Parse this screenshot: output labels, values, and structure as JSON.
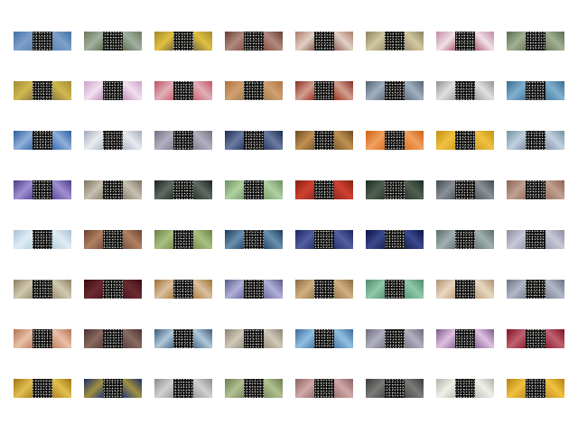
{
  "cells": [
    {
      "a": "#3f6fa8",
      "b": "#7fa0c8",
      "c": "#5a86b8"
    },
    {
      "a": "#6a7a5a",
      "b": "#a2b0a0",
      "c": "#5e7050"
    },
    {
      "a": "#a08a30",
      "b": "#e0c040",
      "c": "#7a6a40"
    },
    {
      "a": "#6a3a30",
      "b": "#b08a80",
      "c": "#8a5040"
    },
    {
      "a": "#b07a60",
      "b": "#e0d0c8",
      "c": "#8a6050"
    },
    {
      "a": "#8a8060",
      "b": "#d0c8a0",
      "c": "#a09070"
    },
    {
      "a": "#c08aa0",
      "b": "#f0e0e8",
      "c": "#b06070"
    },
    {
      "a": "#5a6a50",
      "b": "#a0b090",
      "c": "#707a60"
    },
    {
      "a": "#a08a30",
      "b": "#d0b850",
      "c": "#8a7a40"
    },
    {
      "a": "#d0a0c8",
      "b": "#f0e0f0",
      "c": "#c090b8"
    },
    {
      "a": "#c05060",
      "b": "#e0b0b8",
      "c": "#d06070"
    },
    {
      "a": "#b07040",
      "b": "#d0a070",
      "c": "#a08050"
    },
    {
      "a": "#8a2a20",
      "b": "#d0a090",
      "c": "#a03020"
    },
    {
      "a": "#506070",
      "b": "#a0b0c0",
      "c": "#607080"
    },
    {
      "a": "#909090",
      "b": "#e0e0e0",
      "c": "#a0a0a0"
    },
    {
      "a": "#3a6a8a",
      "b": "#80b0d0",
      "c": "#4a7a9a"
    },
    {
      "a": "#2a5aa0",
      "b": "#90b0d8",
      "c": "#3a6ab0"
    },
    {
      "a": "#a0a8b8",
      "b": "#e8ecf0",
      "c": "#b0b8c8"
    },
    {
      "a": "#707080",
      "b": "#b0b0c0",
      "c": "#808090"
    },
    {
      "a": "#1a2a50",
      "b": "#6a7aa0",
      "c": "#2a3a60"
    },
    {
      "a": "#6a4a20",
      "b": "#c09050",
      "c": "#7a5a30"
    },
    {
      "a": "#d06010",
      "b": "#f0a060",
      "c": "#e07020"
    },
    {
      "a": "#c09010",
      "b": "#f0c040",
      "c": "#d0a020"
    },
    {
      "a": "#7090a0",
      "b": "#c0d0e0",
      "c": "#8090a0"
    },
    {
      "a": "#4a3a8a",
      "b": "#a090d0",
      "c": "#5a4a9a"
    },
    {
      "a": "#7a7060",
      "b": "#c8c0b0",
      "c": "#8a8070"
    },
    {
      "a": "#1a2020",
      "b": "#606a60",
      "c": "#2a3030"
    },
    {
      "a": "#6a9060",
      "b": "#b0d0a0",
      "c": "#7aa070"
    },
    {
      "a": "#802010",
      "b": "#d04030",
      "c": "#902a20"
    },
    {
      "a": "#1a2a20",
      "b": "#506050",
      "c": "#2a3a30"
    },
    {
      "a": "#404850",
      "b": "#8a9098",
      "c": "#505860"
    },
    {
      "a": "#8a6050",
      "b": "#c0a090",
      "c": "#9a7060"
    },
    {
      "a": "#a8c0d8",
      "b": "#e0ecf4",
      "c": "#b8d0e0"
    },
    {
      "a": "#6a4030",
      "b": "#b08060",
      "c": "#7a5040"
    },
    {
      "a": "#6a8040",
      "b": "#a8c080",
      "c": "#7a9050"
    },
    {
      "a": "#1a3a5a",
      "b": "#6a90b0",
      "c": "#2a4a6a"
    },
    {
      "a": "#1a2060",
      "b": "#5060a0",
      "c": "#2a3070"
    },
    {
      "a": "#0a1040",
      "b": "#3a4a90",
      "c": "#1a2050"
    },
    {
      "a": "#5a6a6a",
      "b": "#a0b0b0",
      "c": "#6a7a7a"
    },
    {
      "a": "#8a8aa0",
      "b": "#c8c8d8",
      "c": "#9a9ab0"
    },
    {
      "a": "#8a8060",
      "b": "#d0c8b0",
      "c": "#9a9070"
    },
    {
      "a": "#3a0a10",
      "b": "#6a2a30",
      "c": "#4a1a20"
    },
    {
      "a": "#a07030",
      "b": "#d8c0a0",
      "c": "#b08040"
    },
    {
      "a": "#5a5a8a",
      "b": "#b0b0d8",
      "c": "#6a6a9a"
    },
    {
      "a": "#8a6a40",
      "b": "#d0b080",
      "c": "#9a7a50"
    },
    {
      "a": "#4a8a6a",
      "b": "#90c8a8",
      "c": "#5a9a7a"
    },
    {
      "a": "#b09070",
      "b": "#e8d8c0",
      "c": "#c0a080"
    },
    {
      "a": "#6a7080",
      "b": "#b0b8c8",
      "c": "#7a8090"
    },
    {
      "a": "#b07050",
      "b": "#e8c0a8",
      "c": "#c08060"
    },
    {
      "a": "#4a3030",
      "b": "#8a6a60",
      "c": "#5a4040"
    },
    {
      "a": "#3a5a7a",
      "b": "#b0c8d8",
      "c": "#4a6a8a"
    },
    {
      "a": "#8a8070",
      "b": "#d0c8b8",
      "c": "#9a9080"
    },
    {
      "a": "#3a6a9a",
      "b": "#90c0e0",
      "c": "#4a7aaa"
    },
    {
      "a": "#6a6a7a",
      "b": "#b0b0c0",
      "c": "#7a7a8a"
    },
    {
      "a": "#7a5a8a",
      "b": "#e0c0e0",
      "c": "#8a6a9a"
    },
    {
      "a": "#7a1020",
      "b": "#c06070",
      "c": "#8a2030"
    },
    {
      "a": "#a07010",
      "b": "#e0c050",
      "c": "#b08020"
    },
    {
      "a": "#1a2a6a",
      "b": "#a09040",
      "c": "#2a3a7a"
    },
    {
      "a": "#8a8a8a",
      "b": "#d0d0d0",
      "c": "#9a9a9a"
    },
    {
      "a": "#6a7a4a",
      "b": "#b0c090",
      "c": "#7a8a5a"
    },
    {
      "a": "#8a6060",
      "b": "#d0a8a8",
      "c": "#9a7070"
    },
    {
      "a": "#3a3a3a",
      "b": "#7a7a78",
      "c": "#4a4a4a"
    },
    {
      "a": "#b0b0a8",
      "b": "#f0f0e8",
      "c": "#c0c0b8"
    },
    {
      "a": "#b08010",
      "b": "#f0c040",
      "c": "#c09020"
    }
  ]
}
